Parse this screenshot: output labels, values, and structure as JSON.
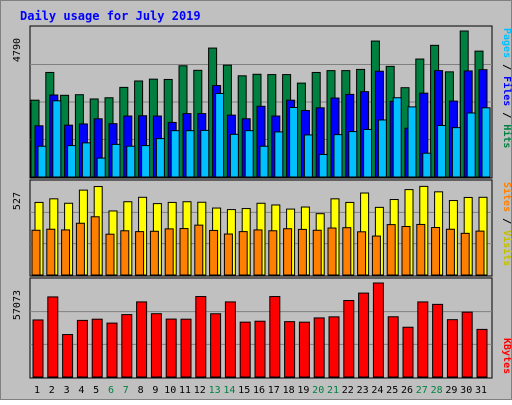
{
  "chart_data": [
    {
      "type": "bar",
      "panel": "hits-files-pages",
      "title": "Daily usage for July 2019",
      "categories": [
        "1",
        "2",
        "3",
        "4",
        "5",
        "6",
        "7",
        "8",
        "9",
        "10",
        "11",
        "12",
        "13",
        "14",
        "15",
        "16",
        "17",
        "18",
        "19",
        "20",
        "21",
        "22",
        "23",
        "24",
        "25",
        "26",
        "27",
        "28",
        "29",
        "30",
        "31"
      ],
      "y_max_label": "4790",
      "ylim": [
        0,
        4790
      ],
      "grid": true,
      "series": [
        {
          "name": "Hits",
          "color": "#008040",
          "values": [
            2520,
            3430,
            2680,
            2700,
            2560,
            2600,
            2940,
            3150,
            3210,
            3200,
            3650,
            3500,
            4230,
            3670,
            3320,
            3370,
            3360,
            3360,
            3080,
            3430,
            3490,
            3490,
            3530,
            4460,
            3630,
            2930,
            3870,
            4320,
            3450,
            4790,
            4130
          ]
        },
        {
          "name": "Files",
          "color": "#0000ff",
          "values": [
            1680,
            2690,
            1700,
            1740,
            1910,
            1750,
            2000,
            2010,
            2000,
            1790,
            2080,
            2080,
            3000,
            2030,
            1910,
            2320,
            2000,
            2520,
            2180,
            2270,
            2590,
            2710,
            2800,
            3470,
            2480,
            1600,
            2750,
            3490,
            2490,
            3480,
            3520
          ]
        },
        {
          "name": "Pages",
          "color": "#00c0ff",
          "values": [
            1010,
            2500,
            1030,
            1120,
            620,
            1070,
            1010,
            1030,
            1260,
            1520,
            1520,
            1530,
            2740,
            1400,
            1520,
            1010,
            1480,
            2280,
            1380,
            740,
            1390,
            1490,
            1560,
            1870,
            2600,
            2300,
            780,
            1690,
            1620,
            2100,
            2270
          ]
        }
      ]
    },
    {
      "type": "bar",
      "panel": "visits-sites",
      "categories": [
        "1",
        "2",
        "3",
        "4",
        "5",
        "6",
        "7",
        "8",
        "9",
        "10",
        "11",
        "12",
        "13",
        "14",
        "15",
        "16",
        "17",
        "18",
        "19",
        "20",
        "21",
        "22",
        "23",
        "24",
        "25",
        "26",
        "27",
        "28",
        "29",
        "30",
        "31"
      ],
      "y_max_label": "527",
      "ylim": [
        0,
        527
      ],
      "grid": true,
      "series": [
        {
          "name": "Visits",
          "color": "#ffff00",
          "values": [
            425,
            446,
            420,
            497,
            518,
            375,
            429,
            455,
            418,
            425,
            429,
            426,
            392,
            383,
            389,
            420,
            410,
            386,
            398,
            359,
            446,
            425,
            480,
            396,
            442,
            500,
            519,
            487,
            436,
            454,
            455
          ]
        },
        {
          "name": "Sites",
          "color": "#ff8000",
          "values": [
            262,
            268,
            264,
            303,
            341,
            239,
            259,
            254,
            256,
            270,
            272,
            292,
            261,
            240,
            254,
            264,
            259,
            271,
            267,
            262,
            275,
            277,
            253,
            228,
            295,
            284,
            296,
            278,
            268,
            244,
            257
          ]
        }
      ]
    },
    {
      "type": "bar",
      "panel": "kbytes",
      "categories": [
        "1",
        "2",
        "3",
        "4",
        "5",
        "6",
        "7",
        "8",
        "9",
        "10",
        "11",
        "12",
        "13",
        "14",
        "15",
        "16",
        "17",
        "18",
        "19",
        "20",
        "21",
        "22",
        "23",
        "24",
        "25",
        "26",
        "27",
        "28",
        "29",
        "30",
        "31"
      ],
      "y_max_label": "57073",
      "ylim": [
        0,
        57073
      ],
      "grid": true,
      "series": [
        {
          "name": "KBytes",
          "color": "#ff0000",
          "values": [
            34640,
            48630,
            25780,
            34370,
            35100,
            32730,
            37890,
            45600,
            38440,
            35160,
            35100,
            48850,
            38400,
            45590,
            33300,
            33860,
            48850,
            33610,
            33300,
            35870,
            36520,
            46440,
            50940,
            57073,
            36580,
            30210,
            45590,
            44100,
            34810,
            39370,
            28900
          ]
        }
      ]
    }
  ],
  "labels": {
    "title": "Daily usage for July 2019",
    "panel1_max": "4790",
    "panel2_max": "527",
    "panel3_max": "57073",
    "side1": [
      "Pages",
      "Files",
      "Hits"
    ],
    "side2": [
      "Sites",
      "Visits"
    ],
    "side3": [
      "KBytes"
    ]
  },
  "colors": {
    "background": "#c0c0c0",
    "title_text": "#0000ff",
    "weekend_label": "#008040",
    "hits": "#008040",
    "files": "#0000ff",
    "pages": "#00c0ff",
    "visits": "#ffff00",
    "sites": "#ff8000",
    "kbytes": "#ff0000"
  },
  "weekend_days": [
    "6",
    "7",
    "13",
    "14",
    "20",
    "21",
    "27",
    "28"
  ]
}
